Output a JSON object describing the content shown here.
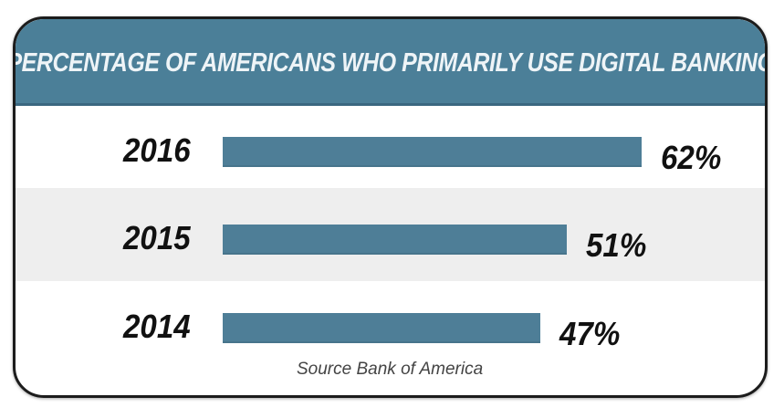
{
  "chart_data": {
    "type": "bar",
    "orientation": "horizontal",
    "title": "PERCENTAGE OF AMERICANS WHO PRIMARILY USE DIGITAL BANKING",
    "categories": [
      "2016",
      "2015",
      "2014"
    ],
    "values": [
      62,
      51,
      47
    ],
    "value_labels": [
      "62%",
      "51%",
      "47%"
    ],
    "unit": "%",
    "source": "Source Bank of America",
    "grid": false,
    "legend": "none",
    "colors": {
      "bar": "#4e7e97",
      "header": "#4b7f98",
      "header_text": "#eef4f7",
      "alt_row": "#eeeeee"
    }
  }
}
